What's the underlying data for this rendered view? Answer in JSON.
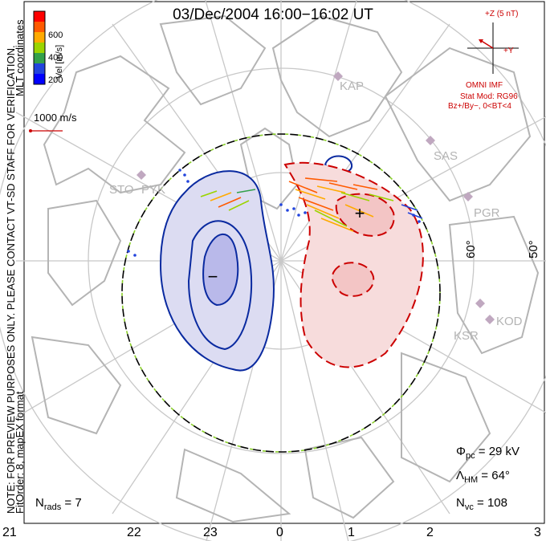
{
  "title": "03/Dec/2004  16:00−16:02  UT",
  "side_notes": {
    "preview_note": "NOTE: FOR PREVIEW PURPOSES ONLY. PLEASE CONTACT VT-SD STAFF FOR VERIFICATION.",
    "fit_order": "FitOrder: 8, mapEX format",
    "coordinates": "MLT coordinates"
  },
  "velocity_scale": {
    "label": "Vel [m/s]",
    "ticks": [
      "600",
      "400",
      "200"
    ],
    "colors": [
      "#ff0000",
      "#ff5a00",
      "#ffaa00",
      "#9bd400",
      "#33a04a",
      "#2244dd",
      "#0000ff"
    ]
  },
  "reference_vector": {
    "label": "1000 m/s"
  },
  "imf": {
    "z_label": "+Z (5 nT)",
    "y_label": "+Y",
    "source": "OMNI IMF",
    "model": "Stat Mod: RG96",
    "condition": "Bz+/By−, 0<BT<4"
  },
  "stations": [
    "KAP",
    "SAS",
    "PGR",
    "KOD",
    "KSR",
    "STO",
    "PYK"
  ],
  "latitude_labels": [
    "60°",
    "50°"
  ],
  "mlt_ticks": [
    "21",
    "22",
    "23",
    "0",
    "1",
    "2",
    "3"
  ],
  "stats": {
    "n_rads": "N",
    "n_rads_sub": "rads",
    "n_rads_value": " = 7",
    "phi": "Φ",
    "phi_sub": "pc",
    "phi_value": " = 29 kV",
    "lambda": "Λ",
    "lambda_sub": "HM",
    "lambda_value": " = 64°",
    "nvc": "N",
    "nvc_sub": "vc",
    "nvc_value": " = 108"
  },
  "potential_markers": {
    "min": "−",
    "max": "+"
  },
  "colors": {
    "positive": "#cc0000",
    "negative": "#0a2aa0",
    "positive_fill": "#f7dcdc",
    "negative_fill": "#dcdcf2",
    "land": "#b4b4b4"
  }
}
